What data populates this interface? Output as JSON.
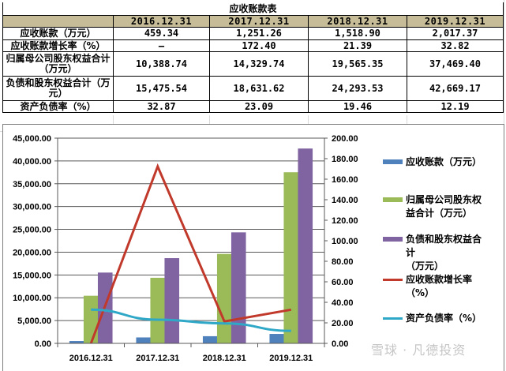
{
  "table": {
    "title": "应收账款表",
    "columns": [
      "",
      "2016.12.31",
      "2017.12.31",
      "2018.12.31",
      "2019.12.31"
    ],
    "rows": [
      {
        "label": "应收账款（万元）",
        "values": [
          "459.34",
          "1,251.26",
          "1,518.90",
          "2,017.37"
        ]
      },
      {
        "label": "应收账款增长率（%）",
        "values": [
          "—",
          "172.40",
          "21.39",
          "32.82"
        ]
      },
      {
        "label": "归属母公司股东权益合计（万元）",
        "values": [
          "10,388.74",
          "14,329.74",
          "19,565.35",
          "37,469.40"
        ]
      },
      {
        "label": "负债和股东权益合计（万元）",
        "values": [
          "15,475.54",
          "18,631.62",
          "24,293.53",
          "42,669.17"
        ]
      },
      {
        "label": "资产负债率（%）",
        "values": [
          "32.87",
          "23.09",
          "19.46",
          "12.19"
        ]
      }
    ],
    "header_color": "#c6bd98"
  },
  "chart_data": {
    "type": "bar",
    "title": "",
    "categories": [
      "2016.12.31",
      "2017.12.31",
      "2018.12.31",
      "2019.12.31"
    ],
    "xlabel": "",
    "ylabel": "",
    "ylim": [
      0,
      45000
    ],
    "y2lim": [
      0,
      200
    ],
    "yticks": [
      "0.00",
      "5,000.00",
      "10,000.00",
      "15,000.00",
      "20,000.00",
      "25,000.00",
      "30,000.00",
      "35,000.00",
      "40,000.00",
      "45,000.00"
    ],
    "y2ticks": [
      "0.00",
      "20.00",
      "40.00",
      "60.00",
      "80.00",
      "100.00",
      "120.00",
      "140.00",
      "160.00",
      "180.00",
      "200.00"
    ],
    "grid": true,
    "legend_position": "right",
    "series": [
      {
        "name": "应收账款（万元）",
        "type": "bar",
        "axis": "left",
        "color": "#4f81bd",
        "values": [
          459.34,
          1251.26,
          1518.9,
          2017.37
        ]
      },
      {
        "name": "归属母公司股东权益合计（万元）",
        "type": "bar",
        "axis": "left",
        "color": "#9bbb59",
        "values": [
          10388.74,
          14329.74,
          19565.35,
          37469.4
        ]
      },
      {
        "name": "负债和股东权益合计（万元）",
        "type": "bar",
        "axis": "left",
        "color": "#8064a2",
        "values": [
          15475.54,
          18631.62,
          24293.53,
          42669.17
        ]
      },
      {
        "name": "应收账款增长率（%）",
        "type": "line",
        "axis": "right",
        "color": "#c0392b",
        "values": [
          0,
          172.4,
          21.39,
          32.82
        ]
      },
      {
        "name": "资产负债率（%）",
        "type": "line",
        "axis": "right",
        "color": "#2fa8c8",
        "values": [
          32.87,
          23.09,
          19.46,
          12.19
        ]
      }
    ]
  },
  "legend": [
    {
      "label": "应收账款（万元）",
      "kind": "bar",
      "color": "#4f81bd"
    },
    {
      "label": "归属母公司股东权\n益合计（万元）",
      "kind": "bar",
      "color": "#9bbb59"
    },
    {
      "label": "负债和股东权益合\n计\n（万元）",
      "kind": "bar",
      "color": "#8064a2"
    },
    {
      "label": "应收账款增长率\n（%）",
      "kind": "line",
      "color": "#c0392b"
    },
    {
      "label": "资产负债率（%）",
      "kind": "line",
      "color": "#2fa8c8"
    }
  ],
  "watermark": "雪球 · 凡德投资"
}
